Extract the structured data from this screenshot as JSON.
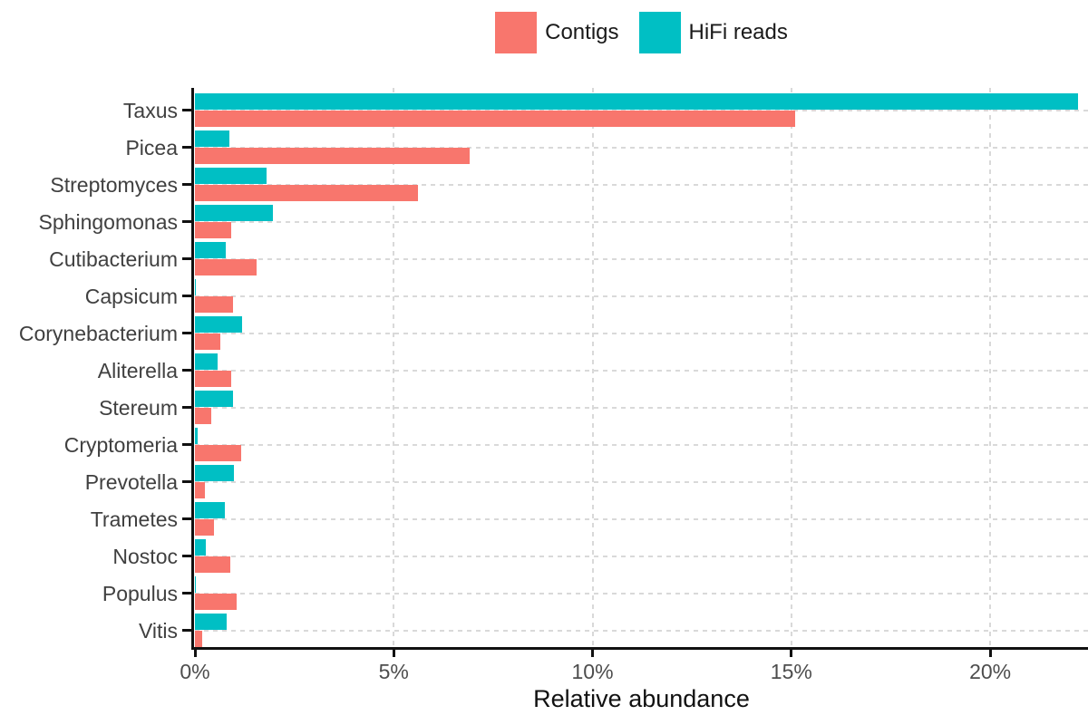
{
  "legend": {
    "items": [
      {
        "label": "Contigs",
        "color": "#F8766D"
      },
      {
        "label": "HiFi reads",
        "color": "#00BFC4"
      }
    ]
  },
  "chart_data": {
    "type": "bar",
    "orientation": "horizontal",
    "title": "",
    "xlabel": "Relative abundance",
    "ylabel": "",
    "categories": [
      "Taxus",
      "Picea",
      "Streptomyces",
      "Sphingomonas",
      "Cutibacterium",
      "Capsicum",
      "Corynebacterium",
      "Aliterella",
      "Stereum",
      "Cryptomeria",
      "Prevotella",
      "Trametes",
      "Nostoc",
      "Populus",
      "Vitis"
    ],
    "series": [
      {
        "name": "Contigs",
        "color": "#F8766D",
        "values": [
          15.1,
          6.9,
          5.6,
          0.91,
          1.55,
          0.96,
          0.64,
          0.91,
          0.41,
          1.16,
          0.25,
          0.47,
          0.9,
          1.06,
          0.19
        ]
      },
      {
        "name": "HiFi reads",
        "color": "#00BFC4",
        "values": [
          22.2,
          0.87,
          1.8,
          1.95,
          0.77,
          0.02,
          1.19,
          0.58,
          0.95,
          0.07,
          0.97,
          0.75,
          0.27,
          0.02,
          0.8
        ]
      }
    ],
    "x_tick_labels": [
      "0%",
      "5%",
      "10%",
      "15%",
      "20%"
    ],
    "x_tick_values": [
      0,
      5,
      10,
      15,
      20
    ],
    "xlim": [
      0,
      22.46
    ],
    "legend_position": "top center",
    "grid": "dashed major vertical lines and dashed horizontal line per category",
    "units": "percent"
  },
  "style": {
    "axis_color": "#111111",
    "grid_color": "#d9d9d9",
    "category_label_color": "#404040",
    "tick_label_color": "#4d4d4d",
    "background": "#ffffff"
  }
}
